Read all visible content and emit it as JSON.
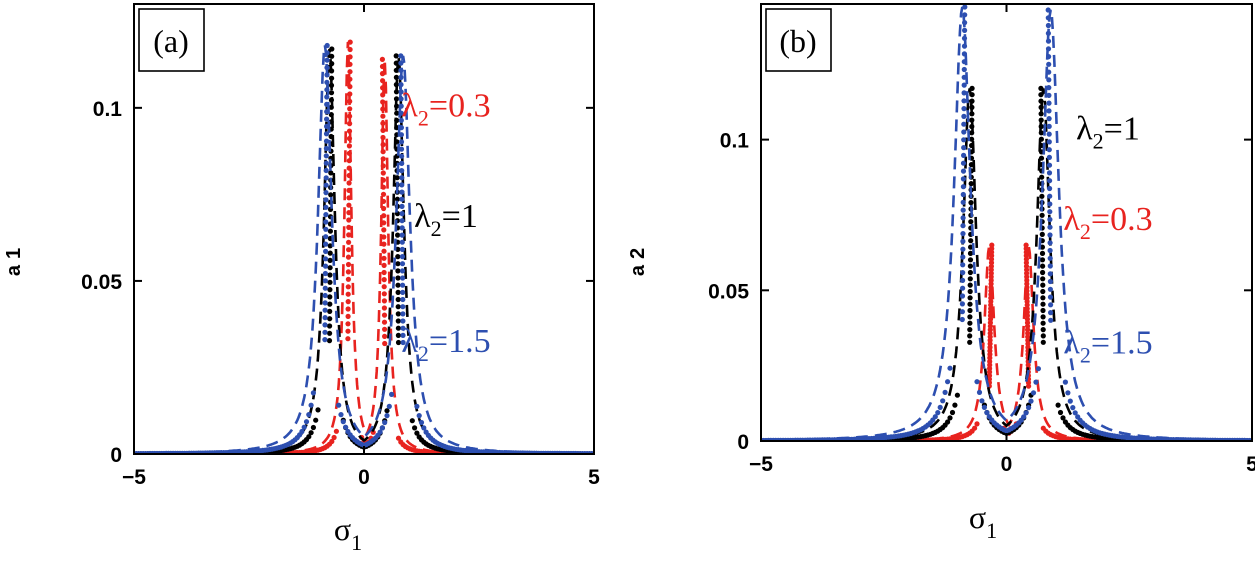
{
  "chart_data": [
    {
      "type": "line",
      "panel_label": "(a)",
      "xlabel": "σ",
      "xlabel_sub": "1",
      "ylabel": "a",
      "ylabel_sub": "1",
      "xlim": [
        -5,
        5
      ],
      "ylim": [
        0,
        0.13
      ],
      "xticks": [
        -5,
        0,
        5
      ],
      "xtick_labels": [
        "−5",
        "0",
        "5"
      ],
      "yticks": [
        0,
        0.05,
        0.1
      ],
      "ytick_labels": [
        "0",
        "0.05",
        "0.1"
      ],
      "series": [
        {
          "name": "λ2=0.3",
          "lambda": "0.3",
          "color": "#e8231f",
          "peak_left_x": -0.35,
          "peak_right_x": 0.45,
          "peak_left_y": 0.119,
          "peak_right_y": 0.114,
          "width": 0.09
        },
        {
          "name": "λ2=1",
          "lambda": "1",
          "color": "#000000",
          "peak_left_x": -0.75,
          "peak_right_x": 0.75,
          "peak_left_y": 0.117,
          "peak_right_y": 0.115,
          "width": 0.14
        },
        {
          "name": "λ2=1.5",
          "lambda": "1.5",
          "color": "#2d4fb0",
          "peak_left_x": -0.85,
          "peak_right_x": 0.85,
          "peak_left_y": 0.118,
          "peak_right_y": 0.115,
          "width": 0.18
        }
      ],
      "legend": [
        {
          "prefix": "λ",
          "sub": "2",
          "suffix": "=0.3",
          "color": "#e8231f",
          "y_value": 0.101
        },
        {
          "prefix": "λ",
          "sub": "2",
          "suffix": "=1",
          "color": "#000000",
          "y_value": 0.069
        },
        {
          "prefix": "λ",
          "sub": "2",
          "suffix": "=1.5",
          "color": "#2d4fb0",
          "y_value": 0.033
        }
      ]
    },
    {
      "type": "line",
      "panel_label": "(b)",
      "xlabel": "σ",
      "xlabel_sub": "1",
      "ylabel": "a",
      "ylabel_sub": "2",
      "xlim": [
        -5,
        5
      ],
      "ylim": [
        0,
        0.145
      ],
      "xticks": [
        -5,
        0,
        5
      ],
      "xtick_labels": [
        "−5",
        "0",
        "5"
      ],
      "yticks": [
        0,
        0.05,
        0.1
      ],
      "ytick_labels": [
        "0",
        "0.05",
        "0.1"
      ],
      "series": [
        {
          "name": "λ2=0.3",
          "lambda": "0.3",
          "color": "#e8231f",
          "peak_left_x": -0.35,
          "peak_right_x": 0.45,
          "peak_left_y": 0.065,
          "peak_right_y": 0.065,
          "width": 0.12
        },
        {
          "name": "λ2=1",
          "lambda": "1",
          "color": "#000000",
          "peak_left_x": -0.75,
          "peak_right_x": 0.75,
          "peak_left_y": 0.117,
          "peak_right_y": 0.117,
          "width": 0.16
        },
        {
          "name": "λ2=1.5",
          "lambda": "1.5",
          "color": "#2d4fb0",
          "peak_left_x": -0.9,
          "peak_right_x": 0.9,
          "peak_left_y": 0.144,
          "peak_right_y": 0.143,
          "width": 0.2
        }
      ],
      "legend": [
        {
          "prefix": "λ",
          "sub": "2",
          "suffix": "=1",
          "color": "#000000",
          "y_value": 0.104
        },
        {
          "prefix": "λ",
          "sub": "2",
          "suffix": "=0.3",
          "color": "#e8231f",
          "y_value": 0.074
        },
        {
          "prefix": "λ",
          "sub": "2",
          "suffix": "=1.5",
          "color": "#2d4fb0",
          "y_value": 0.033
        }
      ]
    }
  ]
}
